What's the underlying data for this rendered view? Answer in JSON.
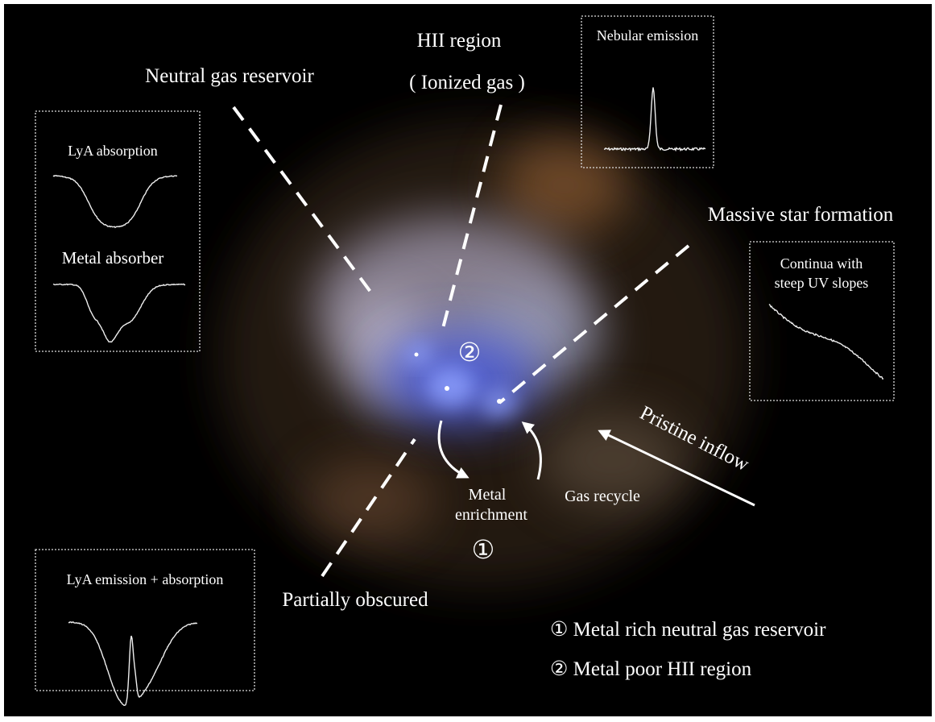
{
  "labels": {
    "hii_region": "HII region",
    "ionized_gas": "( Ionized gas )",
    "neutral_gas": "Neutral gas reservoir",
    "massive_sf": "Massive star formation",
    "partially_obscured": "Partially obscured",
    "pristine_inflow": "Pristine inflow",
    "metal": "Metal",
    "enrichment": "enrichment",
    "gas_recycle": "Gas recycle",
    "marker_1": "①",
    "marker_2": "②"
  },
  "insets": {
    "nebular": {
      "title": "Nebular emission"
    },
    "absorption": {
      "title": "LyA absorption",
      "subtitle": "Metal absorber"
    },
    "continua": {
      "title": [
        "Continua with",
        "steep UV slopes"
      ]
    },
    "emission_absorption": {
      "title": "LyA emission + absorption"
    }
  },
  "legend": [
    "① Metal rich neutral gas reservoir",
    "② Metal poor HII region"
  ]
}
